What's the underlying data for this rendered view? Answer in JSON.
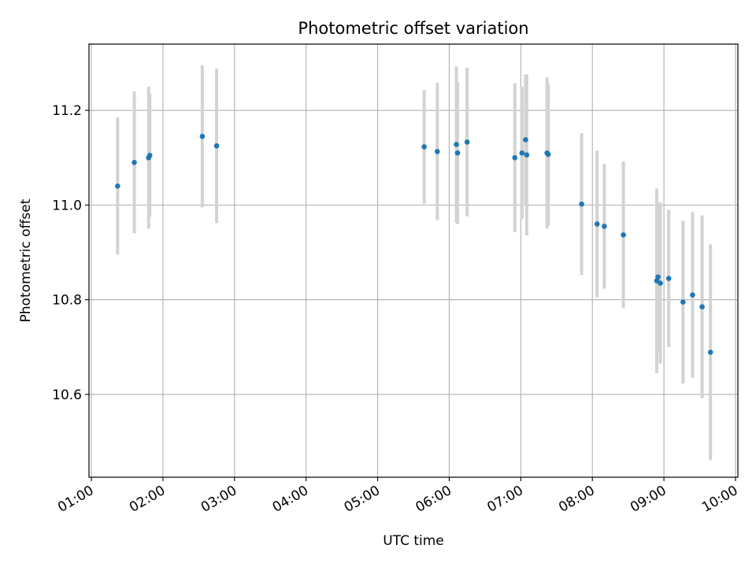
{
  "chart_data": {
    "type": "scatter",
    "title": "Photometric offset variation",
    "xlabel": "UTC time",
    "ylabel": "Photometric offset",
    "x_tick_labels": [
      "01:00",
      "02:00",
      "03:00",
      "04:00",
      "05:00",
      "06:00",
      "07:00",
      "08:00",
      "09:00",
      "10:00"
    ],
    "y_tick_labels": [
      "10.6",
      "10.8",
      "11.0",
      "11.2"
    ],
    "grid": true,
    "colors": {
      "point": "#1f77b4",
      "errorbar": "#d3d3d3",
      "grid": "#b0b0b0"
    },
    "series": [
      {
        "points": [
          {
            "x": "01:22",
            "y": 11.04,
            "err": 0.145
          },
          {
            "x": "01:36",
            "y": 11.09,
            "err": 0.15
          },
          {
            "x": "01:48",
            "y": 11.1,
            "err": 0.15
          },
          {
            "x": "01:49",
            "y": 11.105,
            "err": 0.13
          },
          {
            "x": "02:33",
            "y": 11.145,
            "err": 0.15
          },
          {
            "x": "02:45",
            "y": 11.125,
            "err": 0.163
          },
          {
            "x": "05:39",
            "y": 11.123,
            "err": 0.12
          },
          {
            "x": "05:50",
            "y": 11.113,
            "err": 0.145
          },
          {
            "x": "06:06",
            "y": 11.128,
            "err": 0.165
          },
          {
            "x": "06:07",
            "y": 11.11,
            "err": 0.15
          },
          {
            "x": "06:15",
            "y": 11.133,
            "err": 0.157
          },
          {
            "x": "06:55",
            "y": 11.1,
            "err": 0.157
          },
          {
            "x": "07:01",
            "y": 11.11,
            "err": 0.14
          },
          {
            "x": "07:04",
            "y": 11.138,
            "err": 0.138
          },
          {
            "x": "07:05",
            "y": 11.106,
            "err": 0.17
          },
          {
            "x": "07:22",
            "y": 11.11,
            "err": 0.16
          },
          {
            "x": "07:23",
            "y": 11.107,
            "err": 0.15
          },
          {
            "x": "07:51",
            "y": 11.002,
            "err": 0.15
          },
          {
            "x": "08:04",
            "y": 10.96,
            "err": 0.155
          },
          {
            "x": "08:10",
            "y": 10.955,
            "err": 0.132
          },
          {
            "x": "08:26",
            "y": 10.937,
            "err": 0.155
          },
          {
            "x": "08:54",
            "y": 10.84,
            "err": 0.195
          },
          {
            "x": "08:55",
            "y": 10.848,
            "err": 0.158
          },
          {
            "x": "08:57",
            "y": 10.835,
            "err": 0.17
          },
          {
            "x": "09:04",
            "y": 10.845,
            "err": 0.145
          },
          {
            "x": "09:16",
            "y": 10.795,
            "err": 0.172
          },
          {
            "x": "09:24",
            "y": 10.81,
            "err": 0.175
          },
          {
            "x": "09:32",
            "y": 10.785,
            "err": 0.193
          },
          {
            "x": "09:39",
            "y": 10.689,
            "err": 0.228
          }
        ]
      }
    ],
    "xlim": [
      "00:58",
      "10:02"
    ],
    "ylim": [
      10.425,
      11.34
    ]
  }
}
